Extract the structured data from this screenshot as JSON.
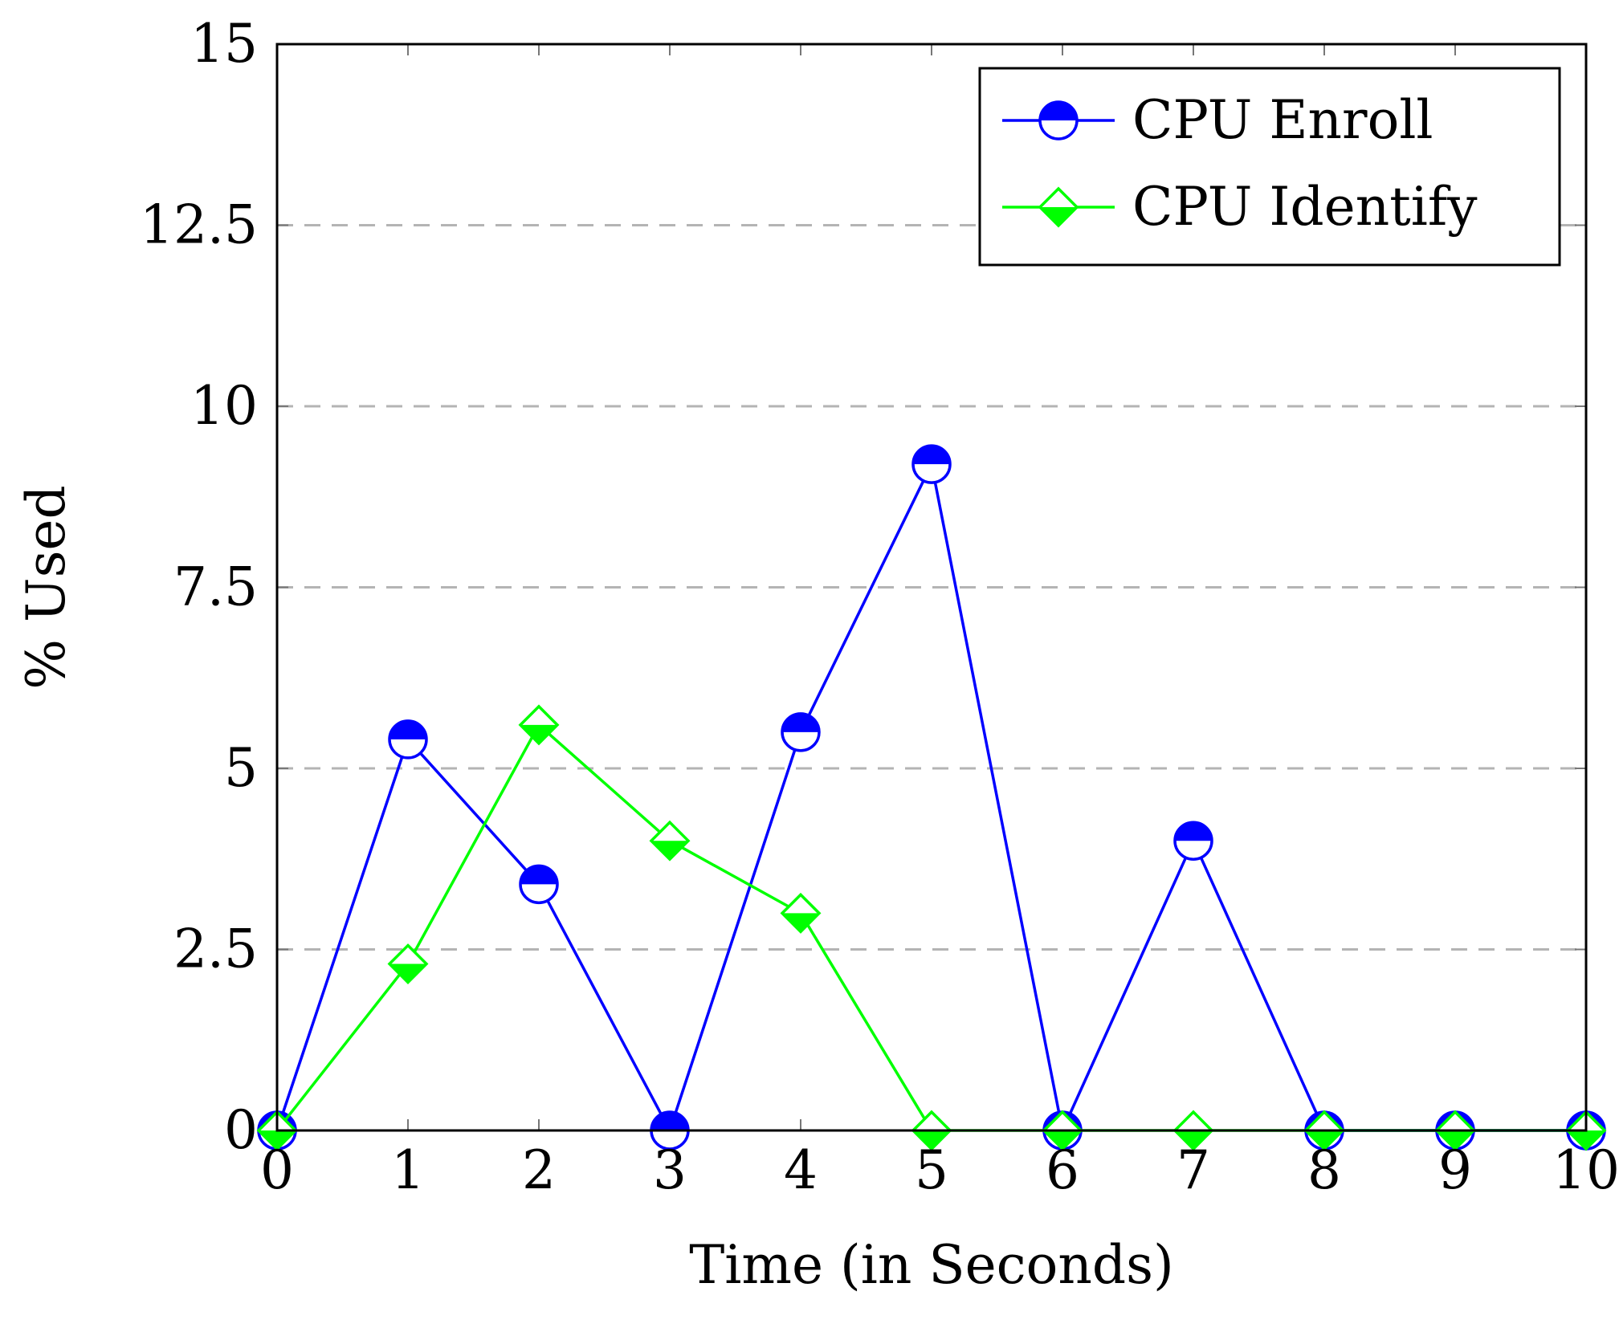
{
  "chart_data": {
    "type": "line",
    "title": "",
    "xlabel": "Time (in Seconds)",
    "ylabel": "% Used",
    "xlim": [
      0,
      10
    ],
    "ylim": [
      0,
      15
    ],
    "x_ticks": [
      0,
      1,
      2,
      3,
      4,
      5,
      6,
      7,
      8,
      9,
      10
    ],
    "y_ticks": [
      0,
      2.5,
      5,
      7.5,
      10,
      12.5,
      15
    ],
    "y_grid": true,
    "grid_style": "dashed horizontal",
    "legend_position": "top-right",
    "x": [
      0,
      1,
      2,
      3,
      4,
      5,
      6,
      7,
      8,
      9,
      10
    ],
    "series": [
      {
        "name": "CPU Enroll",
        "color": "#0000ff",
        "marker": "half-filled-circle",
        "values": [
          0,
          5.4,
          3.4,
          0,
          5.5,
          9.2,
          0,
          4.0,
          0,
          0,
          0
        ]
      },
      {
        "name": "CPU Identify",
        "color": "#00ff00",
        "marker": "half-filled-diamond",
        "values": [
          0,
          2.3,
          5.6,
          4.0,
          3.0,
          0,
          0,
          0,
          0,
          0,
          0
        ]
      }
    ]
  }
}
